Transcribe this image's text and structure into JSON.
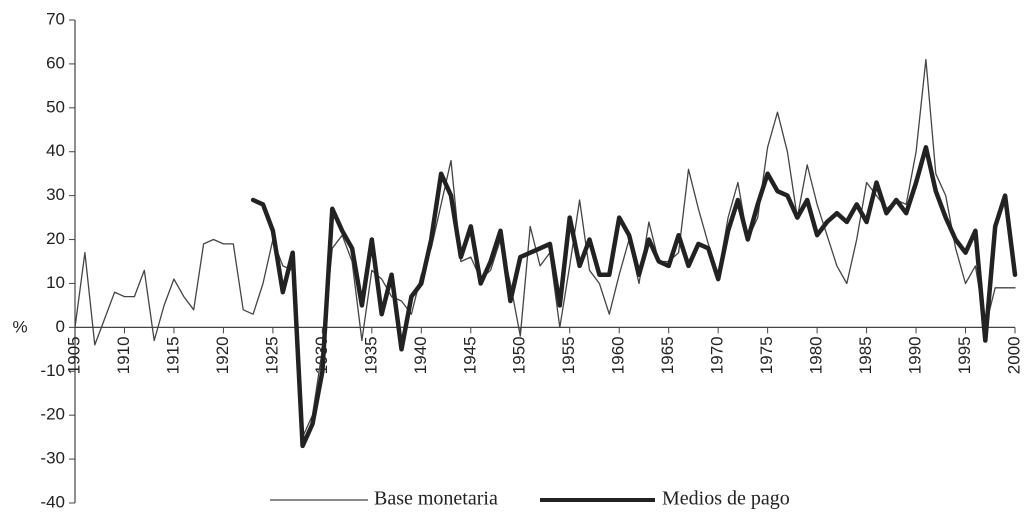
{
  "chart_data": {
    "type": "line",
    "y_label": "%",
    "x": [
      1905,
      1906,
      1907,
      1908,
      1909,
      1910,
      1911,
      1912,
      1913,
      1914,
      1915,
      1916,
      1917,
      1918,
      1919,
      1920,
      1921,
      1922,
      1923,
      1924,
      1925,
      1926,
      1927,
      1928,
      1929,
      1930,
      1931,
      1932,
      1933,
      1934,
      1935,
      1936,
      1937,
      1938,
      1939,
      1940,
      1941,
      1942,
      1943,
      1944,
      1945,
      1946,
      1947,
      1948,
      1949,
      1950,
      1951,
      1952,
      1953,
      1954,
      1955,
      1956,
      1957,
      1958,
      1959,
      1960,
      1961,
      1962,
      1963,
      1964,
      1965,
      1966,
      1967,
      1968,
      1969,
      1970,
      1971,
      1972,
      1973,
      1974,
      1975,
      1976,
      1977,
      1978,
      1979,
      1980,
      1981,
      1982,
      1983,
      1984,
      1985,
      1986,
      1987,
      1988,
      1989,
      1990,
      1991,
      1992,
      1993,
      1994,
      1995,
      1996,
      1997,
      1998,
      1999,
      2000
    ],
    "series": [
      {
        "name": "Base monetaria",
        "color": "#444444",
        "values": [
          0,
          17,
          -4,
          2,
          8,
          7,
          7,
          13,
          -3,
          5,
          11,
          7,
          4,
          19,
          20,
          19,
          19,
          4,
          3,
          10,
          20,
          14,
          13,
          -25,
          -20,
          -5,
          18,
          21,
          15,
          -3,
          13,
          11,
          7,
          6,
          3,
          12,
          18,
          28,
          38,
          15,
          16,
          11,
          13,
          20,
          10,
          -2,
          23,
          14,
          17,
          0,
          14,
          29,
          13,
          10,
          3,
          12,
          20,
          10,
          24,
          15,
          15,
          17,
          36,
          27,
          19,
          12,
          25,
          33,
          20,
          25,
          41,
          49,
          40,
          25,
          37,
          28,
          21,
          14,
          10,
          20,
          33,
          30,
          27,
          29,
          28,
          40,
          61,
          35,
          30,
          18,
          10,
          14,
          0,
          9,
          9,
          9
        ]
      },
      {
        "name": "Medios de pago",
        "color": "#222222",
        "values": [
          null,
          null,
          null,
          null,
          null,
          null,
          null,
          null,
          null,
          null,
          null,
          null,
          null,
          null,
          null,
          null,
          null,
          null,
          29,
          28,
          22,
          8,
          17,
          -27,
          -22,
          -10,
          27,
          22,
          18,
          5,
          20,
          3,
          12,
          -5,
          7,
          10,
          20,
          35,
          30,
          16,
          23,
          10,
          15,
          22,
          6,
          16,
          17,
          18,
          19,
          5,
          25,
          14,
          20,
          12,
          12,
          25,
          21,
          12,
          20,
          15,
          14,
          21,
          14,
          19,
          18,
          11,
          22,
          29,
          20,
          28,
          35,
          31,
          30,
          25,
          29,
          21,
          24,
          26,
          24,
          28,
          24,
          33,
          26,
          29,
          26,
          33,
          41,
          31,
          25,
          20,
          17,
          22,
          -3,
          23,
          30,
          12
        ]
      }
    ],
    "xlim": [
      1905,
      2000
    ],
    "xticks": [
      1905,
      1910,
      1915,
      1920,
      1925,
      1930,
      1935,
      1940,
      1945,
      1950,
      1955,
      1960,
      1965,
      1970,
      1975,
      1980,
      1985,
      1990,
      1995,
      2000
    ],
    "ylim": [
      -40,
      70
    ],
    "yticks": [
      -40,
      -30,
      -20,
      -10,
      0,
      10,
      20,
      30,
      40,
      50,
      60,
      70
    ]
  }
}
